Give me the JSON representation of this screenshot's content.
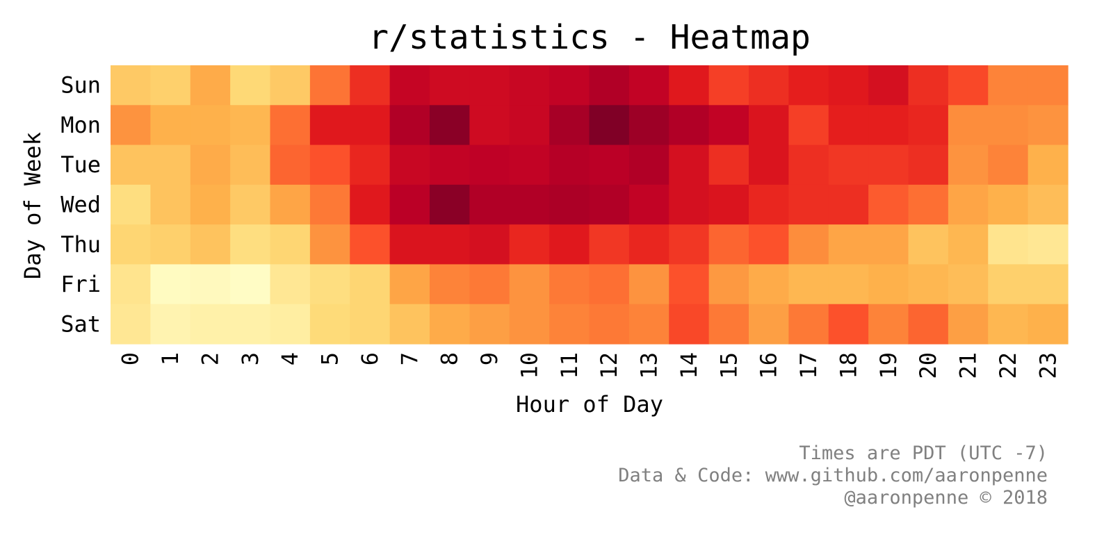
{
  "chart_data": {
    "type": "heatmap",
    "title": "r/statistics - Heatmap",
    "xlabel": "Hour of Day",
    "ylabel": "Day of Week",
    "x_categories": [
      "0",
      "1",
      "2",
      "3",
      "4",
      "5",
      "6",
      "7",
      "8",
      "9",
      "10",
      "11",
      "12",
      "13",
      "14",
      "15",
      "16",
      "17",
      "18",
      "19",
      "20",
      "21",
      "22",
      "23"
    ],
    "y_categories": [
      "Sun",
      "Mon",
      "Tue",
      "Wed",
      "Thu",
      "Fri",
      "Sat"
    ],
    "color_scale": "YlOrRd",
    "colorbar": false,
    "values": [
      [
        0.3,
        0.28,
        0.4,
        0.25,
        0.3,
        0.55,
        0.7,
        0.85,
        0.82,
        0.82,
        0.84,
        0.86,
        0.9,
        0.86,
        0.76,
        0.66,
        0.7,
        0.74,
        0.76,
        0.8,
        0.7,
        0.64,
        0.52,
        0.52
      ],
      [
        0.48,
        0.38,
        0.38,
        0.36,
        0.56,
        0.76,
        0.76,
        0.9,
        0.98,
        0.82,
        0.84,
        0.92,
        1.0,
        0.94,
        0.9,
        0.86,
        0.78,
        0.66,
        0.74,
        0.74,
        0.72,
        0.5,
        0.5,
        0.48
      ],
      [
        0.32,
        0.32,
        0.4,
        0.34,
        0.58,
        0.62,
        0.72,
        0.84,
        0.86,
        0.87,
        0.86,
        0.89,
        0.88,
        0.9,
        0.8,
        0.7,
        0.78,
        0.7,
        0.68,
        0.68,
        0.7,
        0.48,
        0.52,
        0.38
      ],
      [
        0.22,
        0.32,
        0.38,
        0.3,
        0.42,
        0.54,
        0.76,
        0.88,
        0.98,
        0.9,
        0.9,
        0.91,
        0.9,
        0.86,
        0.8,
        0.78,
        0.72,
        0.7,
        0.7,
        0.6,
        0.56,
        0.42,
        0.38,
        0.34
      ],
      [
        0.26,
        0.28,
        0.32,
        0.22,
        0.26,
        0.48,
        0.62,
        0.78,
        0.78,
        0.8,
        0.72,
        0.76,
        0.68,
        0.72,
        0.68,
        0.58,
        0.62,
        0.5,
        0.42,
        0.42,
        0.32,
        0.36,
        0.18,
        0.16
      ],
      [
        0.18,
        0.03,
        0.04,
        0.02,
        0.16,
        0.22,
        0.26,
        0.42,
        0.52,
        0.54,
        0.48,
        0.54,
        0.56,
        0.48,
        0.62,
        0.46,
        0.4,
        0.36,
        0.36,
        0.38,
        0.36,
        0.34,
        0.28,
        0.28
      ],
      [
        0.16,
        0.08,
        0.1,
        0.1,
        0.12,
        0.24,
        0.26,
        0.32,
        0.4,
        0.44,
        0.48,
        0.52,
        0.54,
        0.52,
        0.64,
        0.54,
        0.44,
        0.54,
        0.62,
        0.52,
        0.58,
        0.44,
        0.36,
        0.38
      ]
    ]
  },
  "footer": {
    "line1": "Times are PDT (UTC -7)",
    "line2": "Data & Code: www.github.com/aaronpenne",
    "line3": "@aaronpenne © 2018"
  }
}
